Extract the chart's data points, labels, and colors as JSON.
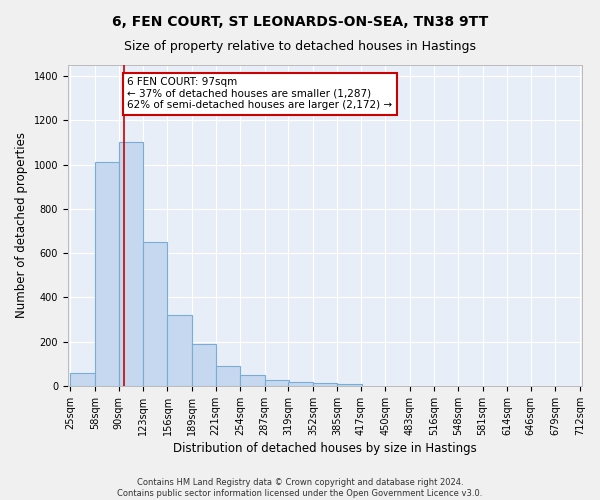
{
  "title_line1": "6, FEN COURT, ST LEONARDS-ON-SEA, TN38 9TT",
  "title_line2": "Size of property relative to detached houses in Hastings",
  "xlabel": "Distribution of detached houses by size in Hastings",
  "ylabel": "Number of detached properties",
  "bar_color": "#c5d8f0",
  "bar_edge_color": "#7badd4",
  "bg_color": "#e8eef8",
  "grid_color": "#ffffff",
  "bin_edges": [
    25,
    58,
    90,
    123,
    156,
    189,
    221,
    254,
    287,
    319,
    352,
    385,
    417,
    450,
    483,
    516,
    548,
    581,
    614,
    646,
    679
  ],
  "bar_heights": [
    60,
    1010,
    1100,
    650,
    320,
    190,
    90,
    50,
    25,
    20,
    15,
    10,
    0,
    0,
    0,
    0,
    0,
    0,
    0,
    0
  ],
  "property_size": 97,
  "vline_color": "#cc0000",
  "annotation_text": "6 FEN COURT: 97sqm\n← 37% of detached houses are smaller (1,287)\n62% of semi-detached houses are larger (2,172) →",
  "annotation_box_color": "#ffffff",
  "annotation_box_edge": "#cc0000",
  "ylim": [
    0,
    1450
  ],
  "yticks": [
    0,
    200,
    400,
    600,
    800,
    1000,
    1200,
    1400
  ],
  "footer_text": "Contains HM Land Registry data © Crown copyright and database right 2024.\nContains public sector information licensed under the Open Government Licence v3.0.",
  "title_fontsize": 10,
  "subtitle_fontsize": 9,
  "tick_label_fontsize": 7,
  "ylabel_fontsize": 8.5,
  "xlabel_fontsize": 8.5,
  "fig_width": 6.0,
  "fig_height": 5.0,
  "fig_dpi": 100
}
